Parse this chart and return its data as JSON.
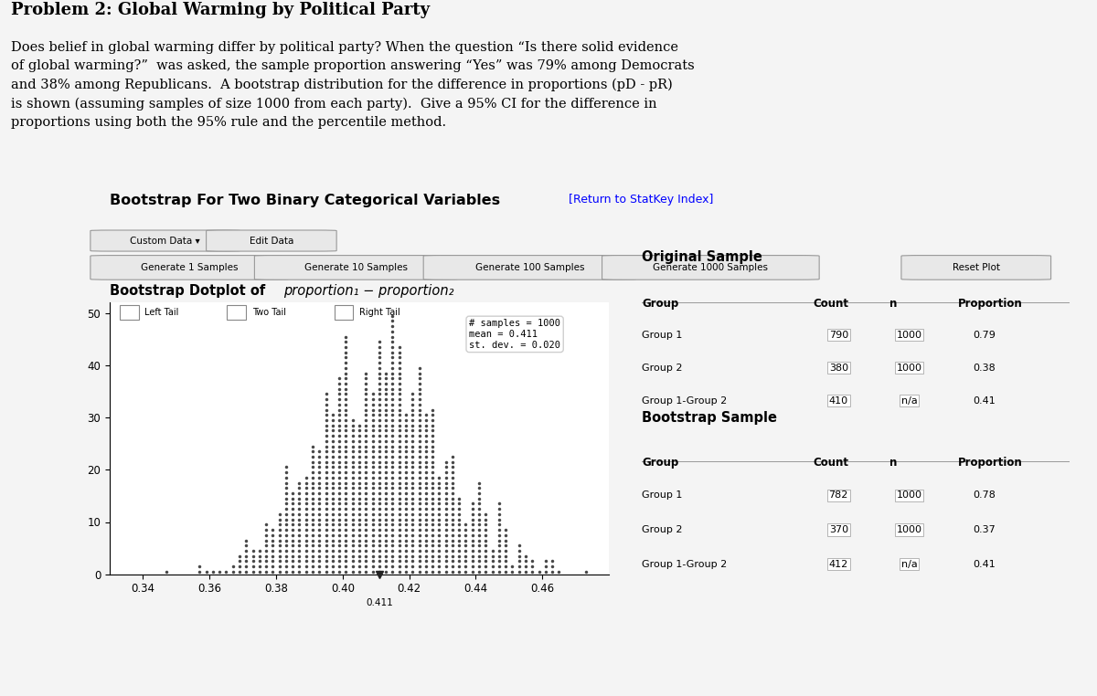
{
  "title_line1": "Problem 2: Global Warming by Political Party",
  "title_line2": "Does belief in global warming differ by political party? When the question “Is there solid evidence",
  "title_line3": "of global warming?”  was asked, the sample proportion answering “Yes” was 79% among Democrats",
  "title_line4": "and 38% among Republicans.  A bootstrap distribution for the difference in proportions (pD - pR)",
  "title_line5": "is shown (assuming samples of size 1000 from each party).  Give a 95% CI for the difference in",
  "title_line6": "proportions using both the 95% rule and the percentile method.",
  "statkey_title": "Bootstrap For Two Binary Categorical Variables",
  "statkey_link": "[Return to StatKey Index]",
  "btn_row1": [
    "Custom Data",
    "Edit Data"
  ],
  "btn_row2": [
    "Generate 1 Samples",
    "Generate 10 Samples",
    "Generate 100 Samples",
    "Generate 1000 Samples",
    "Reset Plot"
  ],
  "dotplot_title_bold": "Bootstrap Dotplot of",
  "dotplot_title_italic": "proportion₁ − proportion₂",
  "legend_labels": [
    "Left Tail",
    "Two Tail",
    "Right Tail"
  ],
  "n_samples": 1000,
  "mean": 0.411,
  "st_dev": 0.02,
  "xlim": [
    0.33,
    0.48
  ],
  "ylim": [
    0,
    52
  ],
  "xticks": [
    0.34,
    0.36,
    0.38,
    0.4,
    0.42,
    0.44,
    0.46
  ],
  "yticks": [
    0,
    10,
    20,
    30,
    40,
    50
  ],
  "mean_marker": 0.411,
  "dot_color": "#333333",
  "dot_size": 2.5,
  "background_color": "#f4f4f4",
  "plot_bg": "#ffffff",
  "orig_sample_title": "Original Sample",
  "orig_groups": [
    "Group 1",
    "Group 2",
    "Group 1-Group 2"
  ],
  "orig_count": [
    790,
    380,
    410
  ],
  "orig_n": [
    "1000",
    "1000",
    "n/a"
  ],
  "orig_proportion": [
    0.79,
    0.38,
    0.41
  ],
  "boot_sample_title": "Bootstrap Sample",
  "boot_groups": [
    "Group 1",
    "Group 2",
    "Group 1-Group 2"
  ],
  "boot_count": [
    782,
    370,
    412
  ],
  "boot_n": [
    "1000",
    "1000",
    "n/a"
  ],
  "boot_proportion": [
    0.78,
    0.37,
    0.41
  ]
}
